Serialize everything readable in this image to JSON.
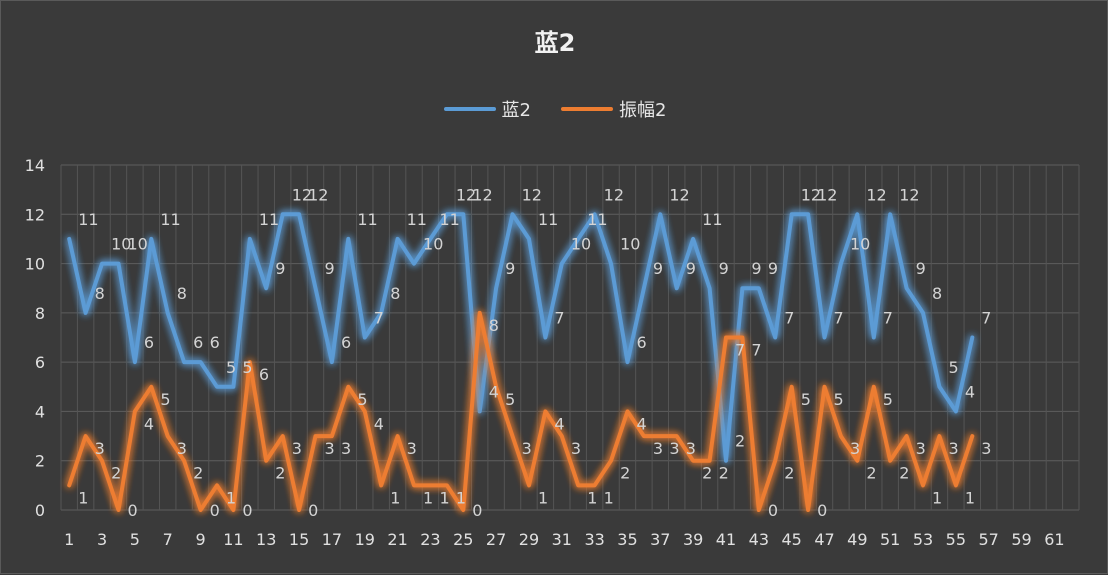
{
  "chart_data": {
    "type": "line",
    "title": "蓝2",
    "xlabel": "",
    "ylabel": "",
    "ylim": [
      0,
      14
    ],
    "yticks": [
      0,
      2,
      4,
      6,
      8,
      10,
      12,
      14
    ],
    "xlim": [
      1,
      62
    ],
    "xticks": [
      "1",
      "3",
      "5",
      "7",
      "9",
      "11",
      "13",
      "15",
      "17",
      "19",
      "21",
      "23",
      "25",
      "27",
      "29",
      "31",
      "33",
      "35",
      "37",
      "39",
      "41",
      "43",
      "45",
      "47",
      "49",
      "51",
      "53",
      "55",
      "57",
      "59",
      "61"
    ],
    "grid": true,
    "legend_position": "top",
    "x": [
      1,
      2,
      3,
      4,
      5,
      6,
      7,
      8,
      9,
      10,
      11,
      12,
      13,
      14,
      15,
      16,
      17,
      18,
      19,
      20,
      21,
      22,
      23,
      24,
      25,
      26,
      27,
      28,
      29,
      30,
      31,
      32,
      33,
      34,
      35,
      36,
      37,
      38,
      39,
      40,
      41,
      42,
      43,
      44,
      45,
      46,
      47,
      48,
      49,
      50,
      51,
      52,
      53,
      54,
      55,
      56,
      57
    ],
    "series": [
      {
        "name": "蓝2",
        "color": "#5b9bd5",
        "values": [
          11,
          8,
          10,
          10,
          6,
          11,
          8,
          6,
          6,
          5,
          5,
          11,
          9,
          12,
          12,
          9,
          6,
          11,
          7,
          8,
          11,
          10,
          11,
          12,
          12,
          4,
          9,
          12,
          11,
          7,
          10,
          11,
          12,
          10,
          6,
          9,
          12,
          9,
          11,
          9,
          2,
          9,
          9,
          7,
          12,
          12,
          7,
          10,
          12,
          7,
          12,
          9,
          8,
          5,
          4,
          7,
          null
        ]
      },
      {
        "name": "振幅2",
        "color": "#ed7d31",
        "values": [
          1,
          3,
          2,
          0,
          4,
          5,
          3,
          2,
          0,
          1,
          0,
          6,
          2,
          3,
          0,
          3,
          3,
          5,
          4,
          1,
          3,
          1,
          1,
          1,
          0,
          8,
          5,
          3,
          1,
          4,
          3,
          1,
          1,
          2,
          4,
          3,
          3,
          3,
          2,
          2,
          7,
          7,
          0,
          2,
          5,
          0,
          5,
          3,
          2,
          5,
          2,
          3,
          1,
          3,
          1,
          3,
          null
        ]
      }
    ],
    "data_labels": {
      "series_0": [
        "11",
        "8",
        "10",
        "10",
        "6",
        "11",
        "8",
        "6",
        "6",
        "5",
        "5",
        "11",
        "9",
        "12",
        "12",
        "9",
        "6",
        "11",
        "7",
        "8",
        "11",
        "10",
        "11",
        "12",
        "12",
        "4",
        "9",
        "12",
        "11",
        "7",
        "10",
        "11",
        "12",
        "10",
        "6",
        "9",
        "12",
        "9",
        "11",
        "9",
        "2",
        "9",
        "9",
        "7",
        "12",
        "12",
        "7",
        "10",
        "12",
        "7",
        "12",
        "9",
        "8",
        "5",
        "4",
        "7"
      ],
      "series_1": [
        "1",
        "3",
        "2",
        "0",
        "4",
        "5",
        "3",
        "2",
        "0",
        "1",
        "0",
        "6",
        "2",
        "3",
        "0",
        "3",
        "3",
        "5",
        "4",
        "1",
        "3",
        "1",
        "1",
        "1",
        "0",
        "8",
        "5",
        "3",
        "1",
        "4",
        "3",
        "1",
        "1",
        "2",
        "4",
        "3",
        "3",
        "3",
        "2",
        "2",
        "7",
        "7",
        "0",
        "2",
        "5",
        "0",
        "5",
        "3",
        "2",
        "5",
        "2",
        "3",
        "1",
        "3",
        "1",
        "3"
      ]
    }
  },
  "legend": {
    "items": [
      {
        "label": "蓝2",
        "color": "#5b9bd5"
      },
      {
        "label": "振幅2",
        "color": "#ed7d31"
      }
    ]
  }
}
